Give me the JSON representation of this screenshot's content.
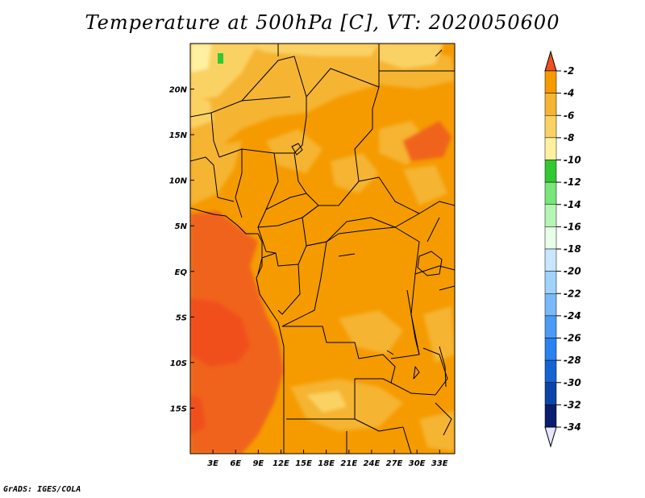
{
  "title": "Temperature at 500hPa [C], VT: 2020050600",
  "credit": "GrADS: IGES/COLA",
  "map": {
    "lon_range": [
      0,
      35
    ],
    "lat_range": [
      -20,
      25
    ],
    "lat_ticks": [
      {
        "value": 20,
        "label": "20N"
      },
      {
        "value": 15,
        "label": "15N"
      },
      {
        "value": 10,
        "label": "10N"
      },
      {
        "value": 5,
        "label": "5N"
      },
      {
        "value": 0,
        "label": "EQ"
      },
      {
        "value": -5,
        "label": "5S"
      },
      {
        "value": -10,
        "label": "10S"
      },
      {
        "value": -15,
        "label": "15S"
      }
    ],
    "lon_ticks": [
      {
        "value": 3,
        "label": "3E"
      },
      {
        "value": 6,
        "label": "6E"
      },
      {
        "value": 9,
        "label": "9E"
      },
      {
        "value": 12,
        "label": "12E"
      },
      {
        "value": 15,
        "label": "15E"
      },
      {
        "value": 18,
        "label": "18E"
      },
      {
        "value": 21,
        "label": "21E"
      },
      {
        "value": 24,
        "label": "24E"
      },
      {
        "value": 27,
        "label": "27E"
      },
      {
        "value": 30,
        "label": "30E"
      },
      {
        "value": 33,
        "label": "33E"
      }
    ]
  },
  "colorbar": {
    "over_color": "#f0501e",
    "under_color": "#e6e6ff",
    "levels": [
      {
        "label": "-2",
        "color": "#f0641e"
      },
      {
        "label": "-4",
        "color": "#f59b00"
      },
      {
        "label": "-6",
        "color": "#f5b432"
      },
      {
        "label": "-8",
        "color": "#fad264"
      },
      {
        "label": "-10",
        "color": "#fff0a0"
      },
      {
        "label": "-12",
        "color": "#32c832"
      },
      {
        "label": "-14",
        "color": "#78e678"
      },
      {
        "label": "-16",
        "color": "#b4f5b4"
      },
      {
        "label": "-18",
        "color": "#e6ffe6"
      },
      {
        "label": "-20",
        "color": "#c8e6ff"
      },
      {
        "label": "-22",
        "color": "#a0d2fa"
      },
      {
        "label": "-24",
        "color": "#78b9fa"
      },
      {
        "label": "-26",
        "color": "#4b9bf5"
      },
      {
        "label": "-28",
        "color": "#2882f0"
      },
      {
        "label": "-30",
        "color": "#1464d2"
      },
      {
        "label": "-32",
        "color": "#0a46aa"
      },
      {
        "label": "-34",
        "color": "#0a1e6e"
      }
    ]
  }
}
